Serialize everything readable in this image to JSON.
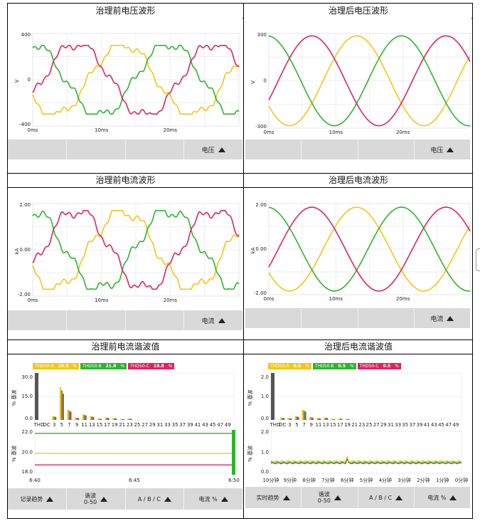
{
  "colors": {
    "a": "#f5c518",
    "b": "#2db52d",
    "c": "#e0245e",
    "grid": "#e6e6e6",
    "bar": "#555555"
  },
  "titles": {
    "v_before": "治理前电压波形",
    "v_after": "治理后电压波形",
    "i_before": "治理前电流波形",
    "i_after": "治理后电流波形",
    "h_before": "治理前电流谐波值",
    "h_after": "治理后电流谐波值"
  },
  "voltage": {
    "before": {
      "ylabel": "V",
      "yticks": [
        "400",
        "0",
        "-400"
      ],
      "xticks": [
        "0ms",
        "10ms",
        "20ms"
      ],
      "toolbar": "电压"
    },
    "after": {
      "ylabel": "V",
      "yticks": [
        "300",
        "0",
        "-300"
      ],
      "xticks": [
        "0ms",
        "10ms",
        "20ms"
      ],
      "toolbar": "电压"
    }
  },
  "current": {
    "before": {
      "ylabel": "kA",
      "yticks": [
        "2.00",
        "0.00",
        "-2.00"
      ],
      "xticks": [
        "0ms",
        "10ms",
        "20ms"
      ],
      "toolbar": "电流"
    },
    "after": {
      "ylabel": "kA",
      "yticks": [
        "2.00",
        "0.00",
        "-2.00"
      ],
      "xticks": [
        "0ms",
        "10ms",
        "20ms"
      ],
      "toolbar": "电流"
    }
  },
  "harmonics": {
    "before": {
      "thd": [
        {
          "label": "THD50-A",
          "value": "19.9",
          "unit": "%"
        },
        {
          "label": "THD50-B",
          "value": "21.8",
          "unit": "%"
        },
        {
          "label": "THD50-C",
          "value": "18.8",
          "unit": "%"
        }
      ],
      "ylabel": "% 基波",
      "yticks": [
        "30.0",
        "15.0",
        "0.0"
      ],
      "xticks": [
        "THD",
        "DC",
        "3",
        "5",
        "7",
        "9",
        "11",
        "13",
        "15",
        "17",
        "19",
        "21",
        "23",
        "25",
        "27",
        "29",
        "31",
        "33",
        "35",
        "37",
        "39",
        "41",
        "43",
        "45",
        "47",
        "49"
      ],
      "trend_ylabel": "% 基波",
      "trend_yticks": [
        "22.0",
        "20.0",
        "18.0"
      ],
      "trend_xticks": [
        "6:40",
        "6:45",
        "6:50"
      ],
      "toolbar": [
        "记录趋势",
        "谐波\n0-50",
        "A / B / C",
        "电流 %"
      ]
    },
    "after": {
      "thd": [
        {
          "label": "THD50-A",
          "value": "0.6",
          "unit": "%"
        },
        {
          "label": "THD50-B",
          "value": "0.5",
          "unit": "%"
        },
        {
          "label": "THD50-C",
          "value": "0.5",
          "unit": "%"
        }
      ],
      "ylabel": "% 基波",
      "yticks": [
        "2.0",
        "1.0",
        "0.0"
      ],
      "xticks": [
        "THD",
        "DC",
        "3",
        "5",
        "7",
        "9",
        "11",
        "13",
        "15",
        "17",
        "19",
        "21",
        "23",
        "25",
        "27",
        "29",
        "31",
        "33",
        "35",
        "37",
        "39",
        "41",
        "43",
        "45",
        "47",
        "49"
      ],
      "trend_ylabel": "% 基波",
      "trend_yticks": [
        "2.0",
        "1.0",
        "0.0"
      ],
      "trend_xticks": [
        "10分钟",
        "9分钟",
        "8分钟",
        "7分钟",
        "6分钟",
        "5分钟",
        "4分钟",
        "3分钟",
        "2分钟",
        "1分钟",
        "0分钟"
      ],
      "toolbar": [
        "实时趋势",
        "谐波\n0-50",
        "A / B / C",
        "电流 %"
      ]
    }
  }
}
